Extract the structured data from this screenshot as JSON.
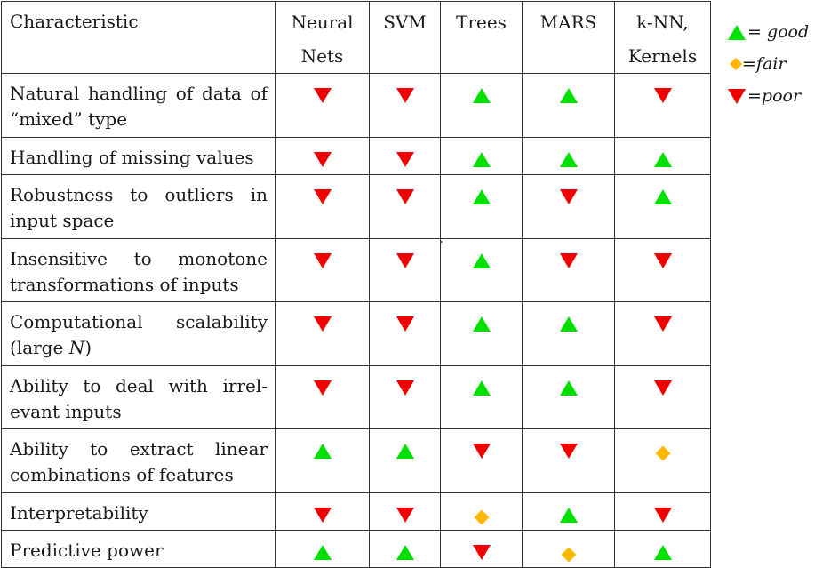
{
  "table": {
    "header": {
      "characteristic": "Characteristic",
      "columns": [
        {
          "line1": "Neural",
          "line2": "Nets"
        },
        {
          "line1": "SVM",
          "line2": ""
        },
        {
          "line1": "Trees",
          "line2": ""
        },
        {
          "line1": "MARS",
          "line2": ""
        },
        {
          "line1": "k-NN,",
          "line2": "Kernels"
        }
      ]
    },
    "rows": [
      {
        "label": "Natural handling of data of “mixed” type",
        "ratings": [
          "poor",
          "poor",
          "good",
          "good",
          "poor"
        ]
      },
      {
        "label": "Handling of missing values",
        "ratings": [
          "poor",
          "poor",
          "good",
          "good",
          "good"
        ]
      },
      {
        "label": "Robustness to outliers in input space",
        "ratings": [
          "poor",
          "poor",
          "good",
          "poor",
          "good"
        ]
      },
      {
        "label": "Insensitive to monotone transformations of inputs",
        "ratings": [
          "poor",
          "poor",
          "good",
          "poor",
          "poor"
        ]
      },
      {
        "label": "Computational scalability (large N)",
        "ratings": [
          "poor",
          "poor",
          "good",
          "good",
          "poor"
        ]
      },
      {
        "label": "Ability to deal with irrel-evant inputs",
        "ratings": [
          "poor",
          "poor",
          "good",
          "good",
          "poor"
        ]
      },
      {
        "label": "Ability to extract linear combinations of features",
        "ratings": [
          "good",
          "good",
          "poor",
          "poor",
          "fair"
        ]
      },
      {
        "label": "Interpretability",
        "ratings": [
          "poor",
          "poor",
          "fair",
          "good",
          "poor"
        ]
      },
      {
        "label": "Predictive power",
        "ratings": [
          "good",
          "good",
          "poor",
          "fair",
          "good"
        ]
      }
    ]
  },
  "legend": {
    "good": "= good",
    "fair": "=fair",
    "poor": "=poor"
  },
  "colors": {
    "good": "#00e000",
    "fair": "#ffb800",
    "poor": "#f00000"
  }
}
